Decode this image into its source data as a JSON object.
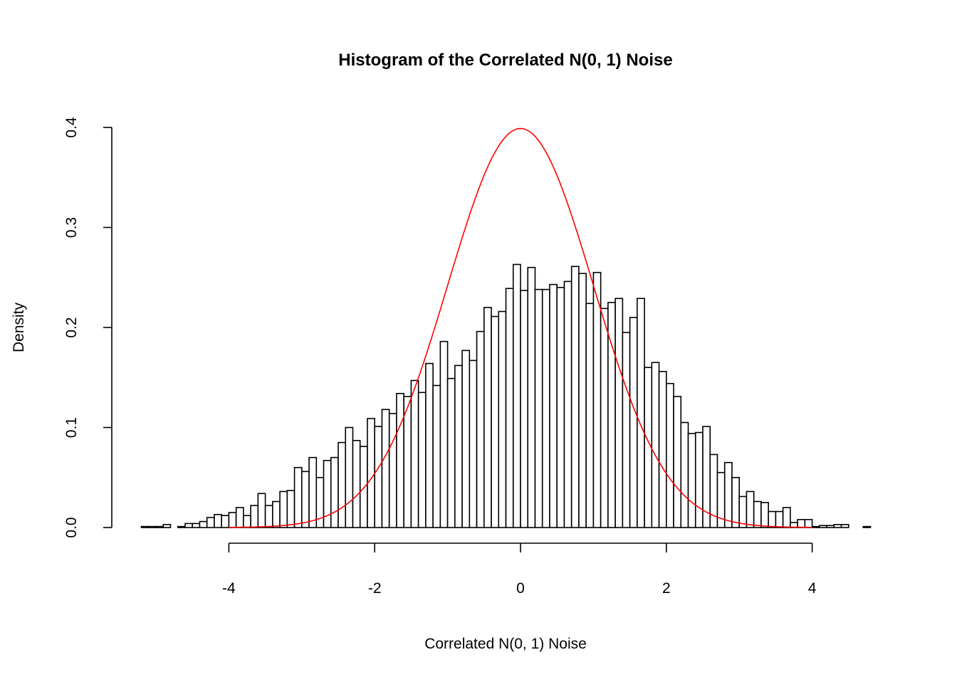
{
  "chart_data": {
    "type": "bar",
    "subtype": "histogram",
    "title": "Histogram of the Correlated N(0, 1) Noise",
    "xlabel": "Correlated N(0, 1) Noise",
    "ylabel": "Density",
    "xlim": [
      -5.2,
      4.8
    ],
    "ylim": [
      0,
      0.4
    ],
    "xticks": [
      -4,
      -2,
      0,
      2,
      4
    ],
    "yticks": [
      0.0,
      0.1,
      0.2,
      0.3,
      0.4
    ],
    "xtick_labels": [
      "-4",
      "-2",
      "0",
      "2",
      "4"
    ],
    "ytick_labels": [
      "0.0",
      "0.1",
      "0.2",
      "0.3",
      "0.4"
    ],
    "bin_start": -5.2,
    "bin_width": 0.1,
    "densities": [
      0.001,
      0.001,
      0.001,
      0.003,
      0.0,
      0.001,
      0.004,
      0.004,
      0.006,
      0.01,
      0.013,
      0.012,
      0.015,
      0.02,
      0.012,
      0.022,
      0.034,
      0.022,
      0.026,
      0.036,
      0.037,
      0.06,
      0.056,
      0.07,
      0.05,
      0.067,
      0.07,
      0.085,
      0.1,
      0.087,
      0.081,
      0.109,
      0.101,
      0.118,
      0.114,
      0.134,
      0.131,
      0.147,
      0.135,
      0.164,
      0.142,
      0.186,
      0.149,
      0.162,
      0.177,
      0.167,
      0.196,
      0.22,
      0.211,
      0.216,
      0.239,
      0.263,
      0.237,
      0.26,
      0.238,
      0.238,
      0.243,
      0.24,
      0.246,
      0.261,
      0.254,
      0.224,
      0.255,
      0.219,
      0.225,
      0.229,
      0.195,
      0.21,
      0.229,
      0.16,
      0.165,
      0.156,
      0.144,
      0.131,
      0.105,
      0.094,
      0.095,
      0.101,
      0.073,
      0.055,
      0.065,
      0.05,
      0.031,
      0.036,
      0.026,
      0.025,
      0.016,
      0.016,
      0.02,
      0.005,
      0.008,
      0.008,
      0.001,
      0.002,
      0.002,
      0.003,
      0.003,
      0.0,
      0.0,
      0.001
    ],
    "overlay_curve": {
      "type": "line",
      "function": "normal density",
      "mean": 0,
      "sd": 1,
      "x_range": [
        -4,
        4
      ],
      "color": "#ff0000"
    },
    "bar_fill": "#ffffff",
    "bar_stroke": "#000000",
    "grid": false,
    "legend": "none"
  }
}
